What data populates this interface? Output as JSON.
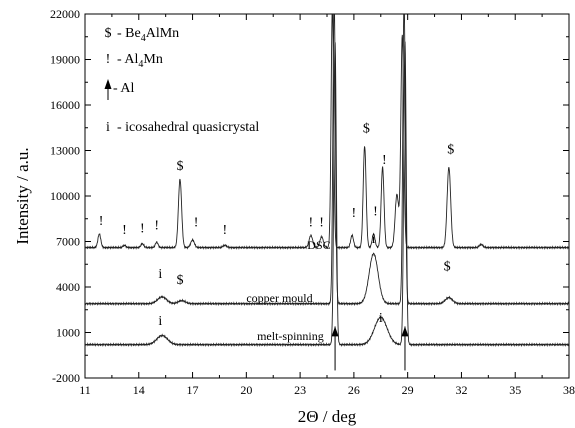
{
  "chart_data": {
    "type": "line",
    "title": "",
    "xlabel": "2Θ / deg",
    "ylabel": "Intensity / a.u.",
    "xlim": [
      11,
      38
    ],
    "ylim": [
      -2000,
      22000
    ],
    "xticks": [
      "11",
      "14",
      "17",
      "20",
      "23",
      "26",
      "29",
      "32",
      "35",
      "38"
    ],
    "yticks": [
      "-2000",
      "1000",
      "4000",
      "7000",
      "10000",
      "13000",
      "16000",
      "19000",
      "22000"
    ],
    "grid": false,
    "legend": {
      "placement": "top-left",
      "entries": [
        {
          "symbol": "$",
          "text": "- Be",
          "sub": "4",
          "text2": "AlMn"
        },
        {
          "symbol": "!",
          "text": "- Al",
          "sub": "4",
          "text2": "Mn"
        },
        {
          "symbol": "↑",
          "text": "- Al",
          "sub": "",
          "text2": ""
        },
        {
          "symbol": "i",
          "text": "- icosahedral quasicrystal",
          "sub": "",
          "text2": ""
        }
      ]
    },
    "series": [
      {
        "name": "DSC",
        "base": 6600,
        "peaks": [
          [
            11.8,
            900,
            0.08
          ],
          [
            13.2,
            150,
            0.08
          ],
          [
            14.2,
            250,
            0.08
          ],
          [
            15.0,
            350,
            0.08
          ],
          [
            16.3,
            4500,
            0.09
          ],
          [
            17.0,
            500,
            0.1
          ],
          [
            18.8,
            150,
            0.1
          ],
          [
            23.6,
            800,
            0.1
          ],
          [
            24.2,
            700,
            0.1
          ],
          [
            24.8,
            16000,
            0.07
          ],
          [
            25.9,
            800,
            0.08
          ],
          [
            26.6,
            6700,
            0.08
          ],
          [
            27.1,
            900,
            0.08
          ],
          [
            27.6,
            5300,
            0.08
          ],
          [
            28.4,
            3500,
            0.1
          ],
          [
            28.7,
            14000,
            0.08
          ],
          [
            31.3,
            5300,
            0.1
          ],
          [
            33.1,
            200,
            0.1
          ]
        ],
        "values": [
          6600,
          6600
        ]
      },
      {
        "name": "copper mould",
        "base": 2900,
        "peaks": [
          [
            15.3,
            450,
            0.25
          ],
          [
            16.4,
            200,
            0.2
          ],
          [
            24.9,
            20000,
            0.07
          ],
          [
            27.1,
            3300,
            0.25
          ],
          [
            28.8,
            20000,
            0.07
          ],
          [
            31.3,
            400,
            0.2
          ]
        ],
        "values": [
          2900,
          2900
        ]
      },
      {
        "name": "melt-spinning",
        "base": 200,
        "peaks": [
          [
            15.3,
            600,
            0.3
          ],
          [
            24.95,
            20000,
            0.07
          ],
          [
            27.5,
            1800,
            0.35
          ],
          [
            28.85,
            20000,
            0.07
          ]
        ],
        "values": [
          200,
          200
        ]
      }
    ],
    "annotations": [
      {
        "text": "!",
        "x": 11.9,
        "y": 8100
      },
      {
        "text": "!",
        "x": 13.2,
        "y": 7500
      },
      {
        "text": "!",
        "x": 14.2,
        "y": 7600
      },
      {
        "text": "!",
        "x": 15.0,
        "y": 7800
      },
      {
        "text": "$",
        "x": 16.3,
        "y": 11700
      },
      {
        "text": "!",
        "x": 17.2,
        "y": 8000
      },
      {
        "text": "!",
        "x": 18.8,
        "y": 7500
      },
      {
        "text": "!",
        "x": 23.6,
        "y": 8000
      },
      {
        "text": "!",
        "x": 24.2,
        "y": 8000
      },
      {
        "text": "$",
        "x": 26.7,
        "y": 14200
      },
      {
        "text": "!",
        "x": 26.0,
        "y": 8600
      },
      {
        "text": "!",
        "x": 27.2,
        "y": 8700
      },
      {
        "text": "!",
        "x": 27.7,
        "y": 12100
      },
      {
        "text": "$",
        "x": 31.4,
        "y": 12800
      },
      {
        "text": "i",
        "x": 15.2,
        "y": 4600
      },
      {
        "text": "$",
        "x": 16.3,
        "y": 4200
      },
      {
        "text": "i",
        "x": 27.1,
        "y": 6900
      },
      {
        "text": "$",
        "x": 31.2,
        "y": 5100
      },
      {
        "text": "i",
        "x": 15.2,
        "y": 1500
      },
      {
        "text": "i",
        "x": 27.5,
        "y": 1700
      }
    ],
    "arrows": [
      {
        "x": 24.95,
        "y_from": -1500,
        "y_to": 1400
      },
      {
        "x": 28.85,
        "y_from": -1500,
        "y_to": 1400
      }
    ],
    "series_labels": [
      {
        "text": "DSC",
        "x": 23.4,
        "y": 6500
      },
      {
        "text": "copper mould",
        "x": 20.0,
        "y": 3000
      },
      {
        "text": "melt-spinning",
        "x": 20.6,
        "y": 500
      }
    ]
  }
}
